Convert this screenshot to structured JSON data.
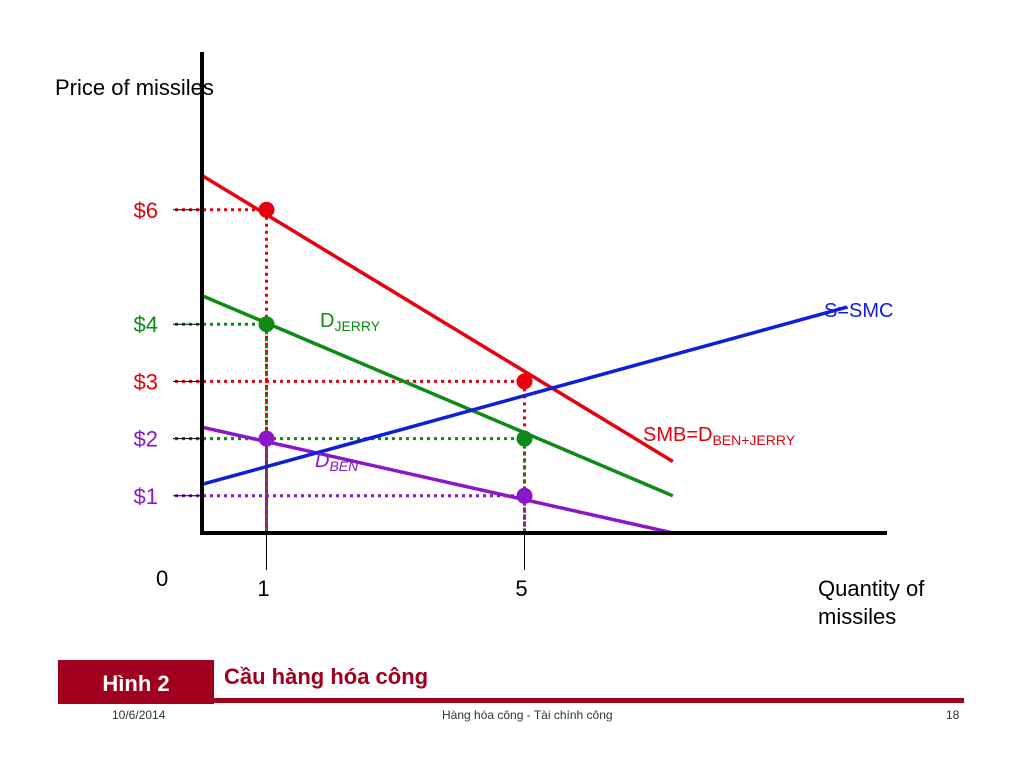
{
  "colors": {
    "smb": "#e8000e",
    "d_jerry": "#0e8a16",
    "d_ben": "#8a17c9",
    "supply": "#0f1fd9",
    "axis": "#000000",
    "footer_accent": "#a0001e"
  },
  "chart_data": {
    "type": "line",
    "ylabel": "Price of missiles",
    "xlabel": "Quantity of missiles",
    "origin_label": "0",
    "xlim": [
      0,
      12
    ],
    "ylim": [
      0,
      7.5
    ],
    "x_ticks": [
      {
        "value": 1,
        "label": "1"
      },
      {
        "value": 5,
        "label": "5"
      }
    ],
    "y_ticks": [
      {
        "value": 6,
        "label": "$6",
        "color": "#e8000e"
      },
      {
        "value": 4,
        "label": "$4",
        "color": "#0e8a16"
      },
      {
        "value": 3,
        "label": "$3",
        "color": "#e8000e"
      },
      {
        "value": 2,
        "label": "$2",
        "color": "#8a17c9"
      },
      {
        "value": 1,
        "label": "$1",
        "color": "#8a17c9"
      }
    ],
    "series": [
      {
        "key": "smb",
        "label_main": "SMB=D",
        "label_sub": "BEN+JERRY",
        "color": "#e8000e",
        "x": [
          0,
          7.3
        ],
        "y": [
          6.6,
          1.6
        ]
      },
      {
        "key": "d_jerry",
        "label_main": "D",
        "label_sub": "JERRY",
        "color": "#0e8a16",
        "x": [
          0,
          7.3
        ],
        "y": [
          4.5,
          1.0
        ]
      },
      {
        "key": "d_ben",
        "label_main": "D",
        "label_sub": "BEN",
        "color": "#8a17c9",
        "x": [
          0,
          7.3
        ],
        "y": [
          2.2,
          0.35
        ]
      },
      {
        "key": "supply",
        "label_main": "S=SMC",
        "label_sub": "",
        "color": "#0f1fd9",
        "x": [
          0,
          10
        ],
        "y": [
          1.2,
          4.3
        ]
      }
    ],
    "points": [
      {
        "x": 1,
        "y": 6,
        "color": "#e8000e"
      },
      {
        "x": 1,
        "y": 4,
        "color": "#0e8a16"
      },
      {
        "x": 1,
        "y": 2,
        "color": "#8a17c9"
      },
      {
        "x": 5,
        "y": 3,
        "color": "#e8000e"
      },
      {
        "x": 5,
        "y": 2,
        "color": "#0e8a16"
      },
      {
        "x": 5,
        "y": 1,
        "color": "#8a17c9"
      }
    ],
    "guides": [
      {
        "x": 1,
        "y": 6,
        "color": "#e8000e"
      },
      {
        "x": 1,
        "y": 4,
        "color": "#0e8a16"
      },
      {
        "x": 1,
        "y": 2,
        "color": "#8a17c9"
      },
      {
        "x": 5,
        "y": 3,
        "color": "#e8000e"
      },
      {
        "x": 5,
        "y": 2,
        "color": "#0e8a16"
      },
      {
        "x": 5,
        "y": 1,
        "color": "#8a17c9"
      }
    ]
  },
  "footer": {
    "figure_tag": "Hình 2",
    "figure_title": "Cầu hàng hóa công",
    "date": "10/6/2014",
    "course": "Hàng hóa công - Tài chính công",
    "page": "18"
  }
}
